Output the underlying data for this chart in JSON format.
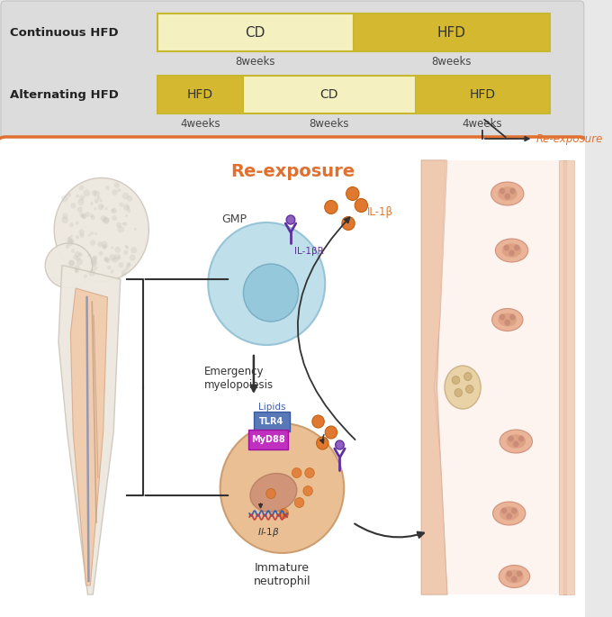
{
  "bg_color": "#e8e8e8",
  "top_panel_bg": "#e0e0e0",
  "bottom_panel_border": "#e07030",
  "bottom_panel_bg": "#ffffff",
  "cd_light": "#f5f0c0",
  "hfd_dark": "#d4b830",
  "re_exposure_color": "#e07030",
  "title": "Re-exposure",
  "continuous_label": "Continuous HFD",
  "alternating_label": "Alternating HFD",
  "weeks_color": "#444444",
  "label_color": "#222222",
  "arrow_color": "#333333",
  "gmp_cell_color": "#b8dce8",
  "gmp_nucleus_color": "#8ec4d8",
  "neut_cell_color": "#e8b888",
  "neut_nucleus_color": "#d09878",
  "bone_outer_color": "#e8e0d4",
  "bone_inner_color": "#f0cdb0",
  "orange_dot_color": "#e07830",
  "il1br_color": "#6030a0",
  "tlr4_color": "#4060b0",
  "myd88_color": "#c030c0",
  "vessel_wall_color": "#f0c8b0",
  "vessel_interior_color": "#fdf0ec",
  "rbc_color": "#e8a888",
  "rbc_inner_color": "#d49878"
}
